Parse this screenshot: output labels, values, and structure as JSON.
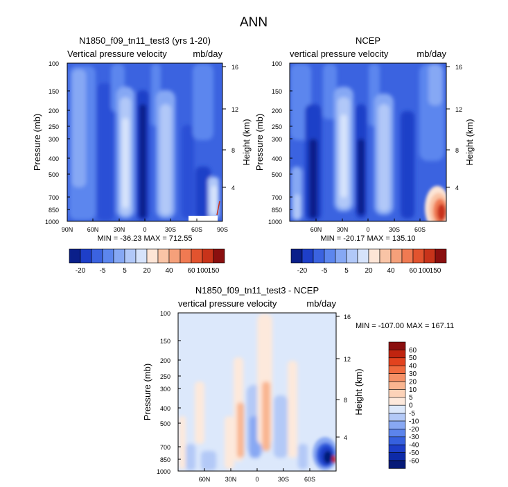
{
  "figure_title": "ANN",
  "chart_data": [
    {
      "type": "heatmap",
      "title": "N1850_f09_tn11_test3 (yrs 1-20)",
      "subtitle_left": "Vertical pressure velocity",
      "subtitle_right": "mb/day",
      "ylabel": "Pressure (mb)",
      "ylabel_right": "Height (km)",
      "x_ticks": [
        "90N",
        "60N",
        "30N",
        "0",
        "30S",
        "60S",
        "90S"
      ],
      "x_lim": [
        90,
        -90
      ],
      "y_ticks": [
        "100",
        "150",
        "200",
        "250",
        "300",
        "400",
        "500",
        "700",
        "850",
        "1000"
      ],
      "y_lim": [
        100,
        1000
      ],
      "height_ticks": [
        "4",
        "8",
        "12",
        "16"
      ],
      "stats_text": "MIN = -36.23  MAX = 712.55",
      "colorbar_labels": [
        "-20",
        "-5",
        "5",
        "20",
        "40",
        "60",
        "100",
        "150"
      ],
      "colorbar_colors": [
        "#0a1f8a",
        "#1e3fc8",
        "#3b63e0",
        "#5c86ee",
        "#86a8f4",
        "#b1c8f8",
        "#d6e3fb",
        "#fde5d6",
        "#f9c4a6",
        "#f5a07a",
        "#f07a52",
        "#e2532e",
        "#c8331a",
        "#8a0f0f"
      ]
    },
    {
      "type": "heatmap",
      "title": "NCEP",
      "subtitle_left": "vertical pressure velocity",
      "subtitle_right": "mb/day",
      "ylabel": "Pressure (mb)",
      "ylabel_right": "Height (km)",
      "x_ticks": [
        "60N",
        "30N",
        "0",
        "30S",
        "60S"
      ],
      "x_lim": [
        90,
        -90
      ],
      "y_ticks": [
        "100",
        "150",
        "200",
        "250",
        "300",
        "400",
        "500",
        "700",
        "850",
        "1000"
      ],
      "y_lim": [
        100,
        1000
      ],
      "height_ticks": [
        "4",
        "8",
        "12",
        "16"
      ],
      "stats_text": "MIN = -20.17  MAX = 135.10",
      "colorbar_labels": [
        "-20",
        "-5",
        "5",
        "20",
        "40",
        "60",
        "100",
        "150"
      ],
      "colorbar_colors": [
        "#0a1f8a",
        "#1e3fc8",
        "#3b63e0",
        "#5c86ee",
        "#86a8f4",
        "#b1c8f8",
        "#d6e3fb",
        "#fde5d6",
        "#f9c4a6",
        "#f5a07a",
        "#f07a52",
        "#e2532e",
        "#c8331a",
        "#8a0f0f"
      ]
    },
    {
      "type": "heatmap",
      "title": "N1850_f09_tn11_test3 - NCEP",
      "subtitle_left": "vertical pressure velocity",
      "subtitle_right": "mb/day",
      "ylabel": "Pressure (mb)",
      "ylabel_right": "Height (km)",
      "x_ticks": [
        "60N",
        "30N",
        "0",
        "30S",
        "60S"
      ],
      "x_lim": [
        90,
        -90
      ],
      "y_ticks": [
        "100",
        "150",
        "200",
        "250",
        "300",
        "400",
        "500",
        "700",
        "850",
        "1000"
      ],
      "y_lim": [
        100,
        1000
      ],
      "height_ticks": [
        "4",
        "8",
        "12",
        "16"
      ],
      "stats_text": "MIN = -107.00  MAX = 167.11",
      "colorbar_labels": [
        "60",
        "50",
        "40",
        "30",
        "20",
        "10",
        "5",
        "0",
        "-5",
        "-10",
        "-20",
        "-30",
        "-40",
        "-50",
        "-60"
      ],
      "colorbar_colors": [
        "#8a0f0f",
        "#c0240f",
        "#e2421e",
        "#f06a3e",
        "#f59066",
        "#f9b590",
        "#fcd2b8",
        "#fde9dc",
        "#dce8fb",
        "#b3c9f7",
        "#88a8f3",
        "#5c84ec",
        "#3660de",
        "#1d3ec8",
        "#0d2aa8",
        "#061a78"
      ]
    }
  ]
}
